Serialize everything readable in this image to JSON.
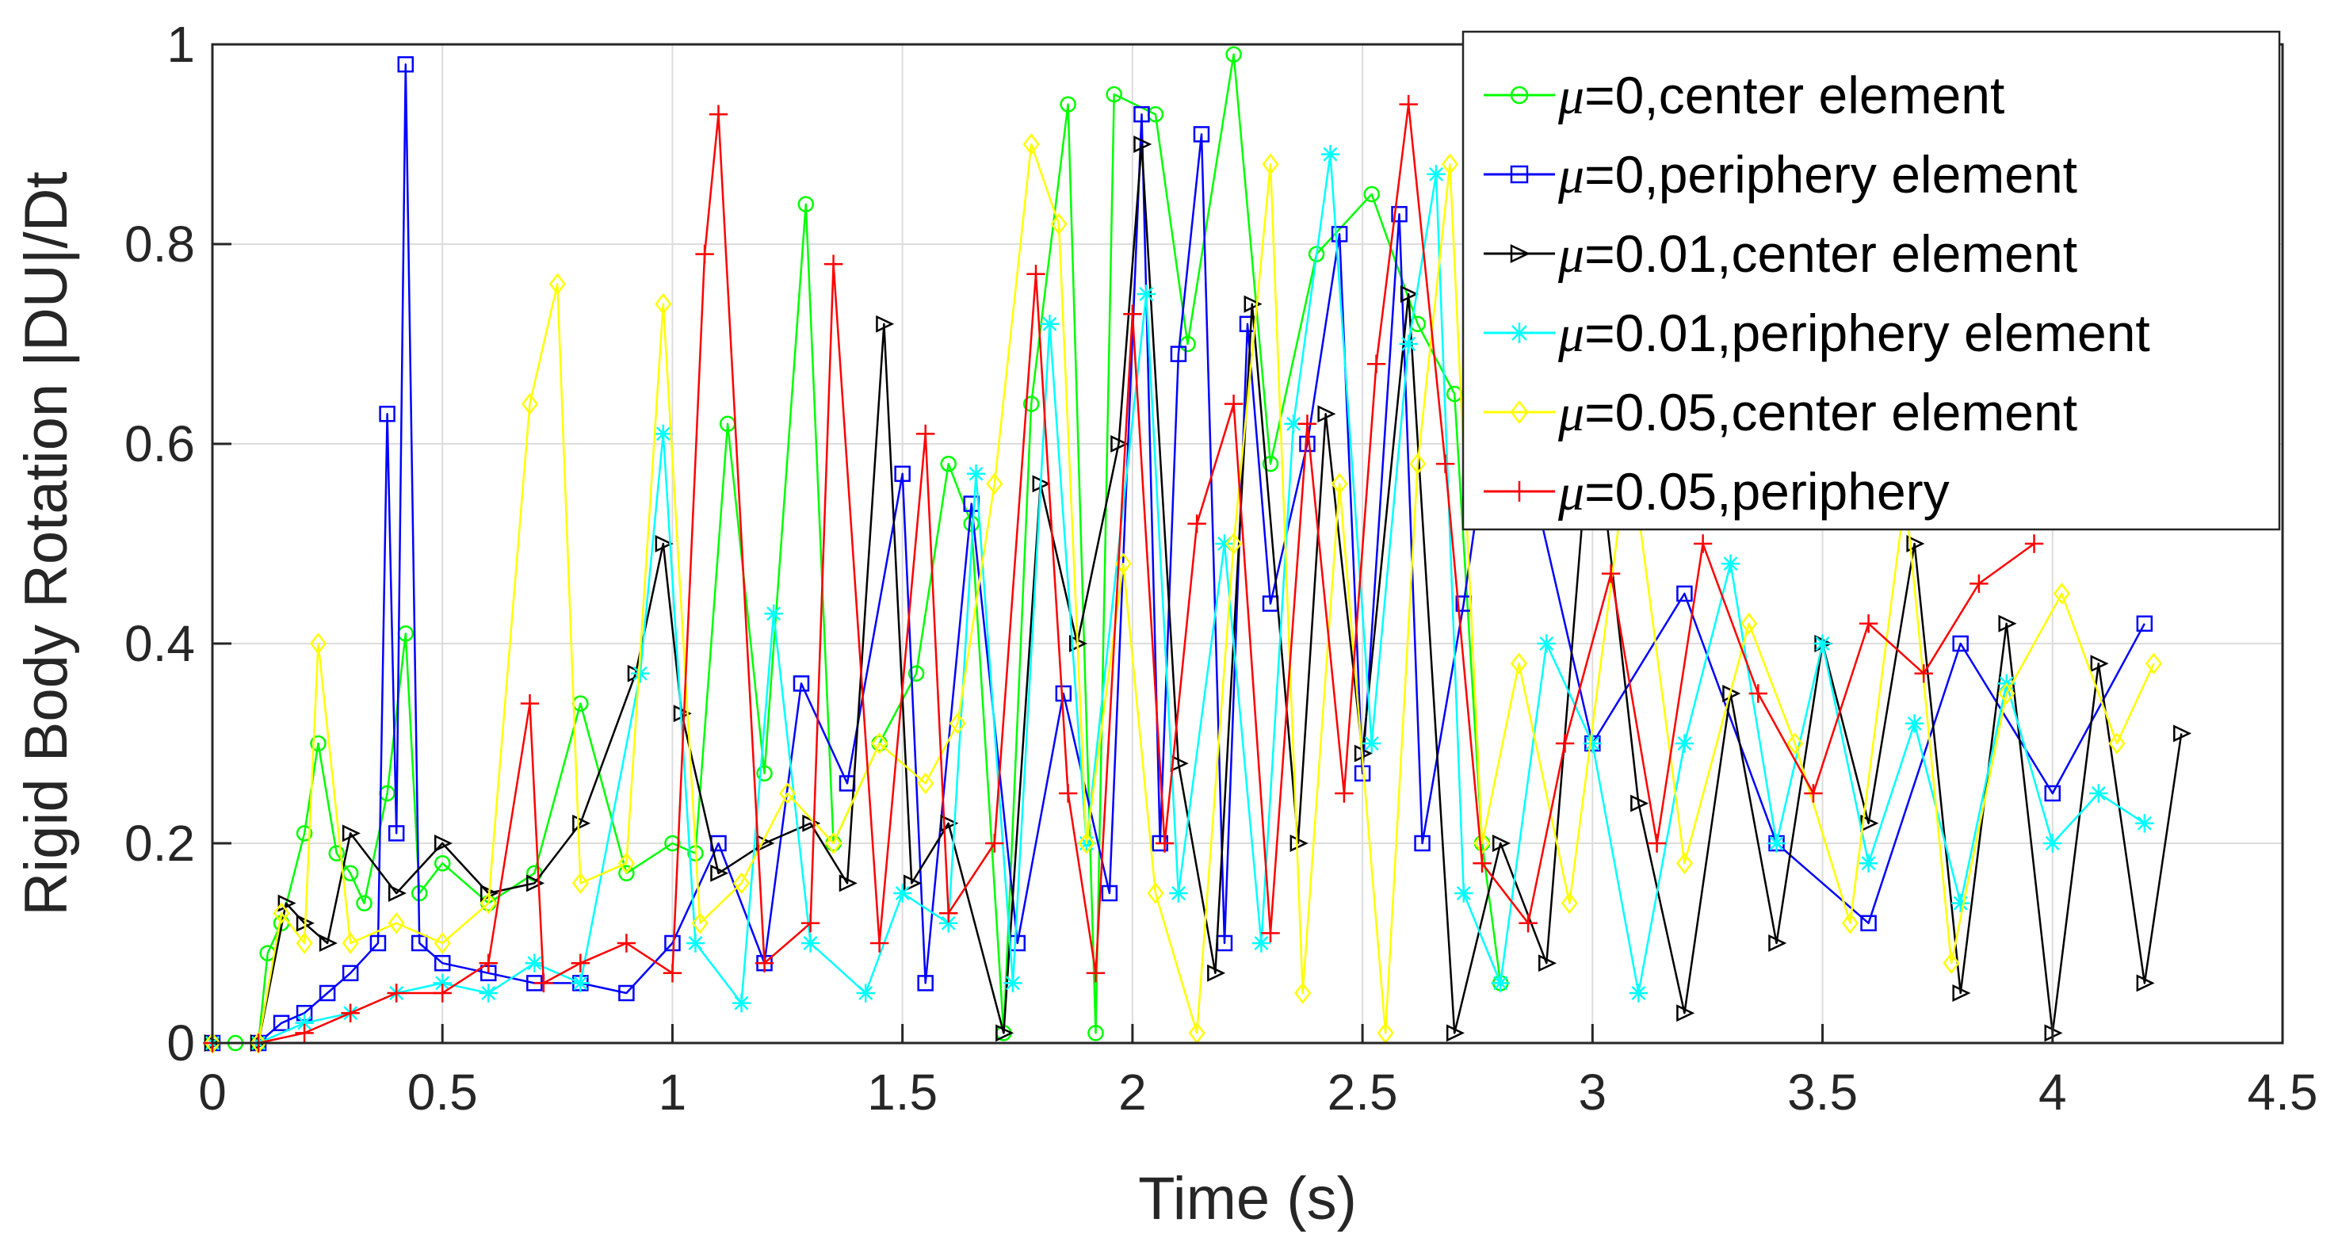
{
  "chart_data": {
    "type": "line",
    "title": "",
    "xlabel": "Time (s)",
    "ylabel": "Rigid Body Rotation |DU|/Dt",
    "xlim": [
      0,
      4.5
    ],
    "ylim": [
      0,
      1
    ],
    "grid": true,
    "legend_position": "top-right",
    "x_ticks": [
      0,
      0.5,
      1,
      1.5,
      2,
      2.5,
      3,
      3.5,
      4,
      4.5
    ],
    "x_tick_labels": [
      "0",
      "0.5",
      "1",
      "1.5",
      "2",
      "2.5",
      "3",
      "3.5",
      "4",
      "4.5"
    ],
    "y_ticks": [
      0,
      0.2,
      0.4,
      0.6,
      0.8,
      1
    ],
    "y_tick_labels": [
      "0",
      "0.2",
      "0.4",
      "0.6",
      "0.8",
      "1"
    ],
    "series": [
      {
        "name": "μ=0,center element",
        "mu_symbol": "μ",
        "label_rest": "=0,center element",
        "color": "#00ff00",
        "marker": "circle",
        "x": [
          0.0,
          0.05,
          0.1,
          0.12,
          0.15,
          0.2,
          0.23,
          0.27,
          0.3,
          0.33,
          0.38,
          0.42,
          0.45,
          0.5,
          0.6,
          0.7,
          0.8,
          0.9,
          1.0,
          1.05,
          1.12,
          1.2,
          1.29,
          1.35,
          1.45,
          1.53,
          1.6,
          1.65,
          1.72,
          1.78,
          1.86,
          1.92,
          1.96,
          2.05,
          2.12,
          2.22,
          2.3,
          2.4,
          2.52,
          2.62,
          2.7,
          2.76,
          2.8
        ],
        "values": [
          0.0,
          0.0,
          0.0,
          0.09,
          0.12,
          0.21,
          0.3,
          0.19,
          0.17,
          0.14,
          0.25,
          0.41,
          0.15,
          0.18,
          0.14,
          0.17,
          0.34,
          0.17,
          0.2,
          0.19,
          0.62,
          0.27,
          0.84,
          0.2,
          0.3,
          0.37,
          0.58,
          0.52,
          0.01,
          0.64,
          0.94,
          0.01,
          0.95,
          0.93,
          0.7,
          0.99,
          0.58,
          0.79,
          0.85,
          0.72,
          0.65,
          0.2,
          0.06
        ]
      },
      {
        "name": "μ=0,periphery element",
        "mu_symbol": "μ",
        "label_rest": "=0,periphery element",
        "color": "#0000ff",
        "marker": "square",
        "x": [
          0.0,
          0.1,
          0.15,
          0.2,
          0.25,
          0.3,
          0.36,
          0.38,
          0.4,
          0.42,
          0.45,
          0.5,
          0.6,
          0.7,
          0.8,
          0.9,
          1.0,
          1.1,
          1.2,
          1.28,
          1.38,
          1.5,
          1.55,
          1.65,
          1.75,
          1.85,
          1.95,
          2.02,
          2.06,
          2.1,
          2.15,
          2.2,
          2.25,
          2.3,
          2.38,
          2.45,
          2.5,
          2.58,
          2.63,
          2.72,
          2.8,
          3.0,
          3.2,
          3.4,
          3.6,
          3.8,
          4.0,
          4.2
        ],
        "values": [
          0.0,
          0.0,
          0.02,
          0.03,
          0.05,
          0.07,
          0.1,
          0.63,
          0.21,
          0.98,
          0.1,
          0.08,
          0.07,
          0.06,
          0.06,
          0.05,
          0.1,
          0.2,
          0.08,
          0.36,
          0.26,
          0.57,
          0.06,
          0.54,
          0.1,
          0.35,
          0.15,
          0.93,
          0.2,
          0.69,
          0.91,
          0.1,
          0.72,
          0.44,
          0.6,
          0.81,
          0.27,
          0.83,
          0.2,
          0.44,
          0.7,
          0.3,
          0.45,
          0.2,
          0.12,
          0.4,
          0.25,
          0.42
        ]
      },
      {
        "name": "μ=0.01,center element",
        "mu_symbol": "μ",
        "label_rest": "=0.01,center element",
        "color": "#000000",
        "marker": "triangle-right",
        "x": [
          0.0,
          0.1,
          0.16,
          0.2,
          0.25,
          0.3,
          0.4,
          0.5,
          0.6,
          0.7,
          0.8,
          0.92,
          0.98,
          1.02,
          1.1,
          1.2,
          1.3,
          1.38,
          1.46,
          1.52,
          1.6,
          1.72,
          1.8,
          1.88,
          1.97,
          2.02,
          2.1,
          2.18,
          2.26,
          2.36,
          2.42,
          2.5,
          2.6,
          2.7,
          2.8,
          2.9,
          3.0,
          3.1,
          3.2,
          3.3,
          3.4,
          3.5,
          3.6,
          3.7,
          3.8,
          3.9,
          4.0,
          4.1,
          4.2,
          4.28
        ],
        "values": [
          0.0,
          0.0,
          0.14,
          0.12,
          0.1,
          0.21,
          0.15,
          0.2,
          0.15,
          0.16,
          0.22,
          0.37,
          0.5,
          0.33,
          0.17,
          0.2,
          0.22,
          0.16,
          0.72,
          0.16,
          0.22,
          0.01,
          0.56,
          0.4,
          0.6,
          0.9,
          0.28,
          0.07,
          0.74,
          0.2,
          0.63,
          0.29,
          0.75,
          0.01,
          0.2,
          0.08,
          0.65,
          0.24,
          0.03,
          0.35,
          0.1,
          0.4,
          0.22,
          0.5,
          0.05,
          0.42,
          0.01,
          0.38,
          0.06,
          0.31
        ]
      },
      {
        "name": "μ=0.01,periphery element",
        "mu_symbol": "μ",
        "label_rest": "=0.01,periphery element",
        "color": "#00ffff",
        "marker": "asterisk",
        "x": [
          0.0,
          0.1,
          0.2,
          0.3,
          0.4,
          0.5,
          0.6,
          0.7,
          0.8,
          0.93,
          0.98,
          1.05,
          1.15,
          1.22,
          1.3,
          1.42,
          1.5,
          1.6,
          1.66,
          1.74,
          1.82,
          1.9,
          2.03,
          2.1,
          2.2,
          2.28,
          2.35,
          2.43,
          2.52,
          2.6,
          2.66,
          2.72,
          2.8,
          2.9,
          3.0,
          3.1,
          3.2,
          3.3,
          3.4,
          3.5,
          3.6,
          3.7,
          3.8,
          3.9,
          4.0,
          4.1,
          4.2
        ],
        "values": [
          0.0,
          0.0,
          0.02,
          0.03,
          0.05,
          0.06,
          0.05,
          0.08,
          0.06,
          0.37,
          0.61,
          0.1,
          0.04,
          0.43,
          0.1,
          0.05,
          0.15,
          0.12,
          0.57,
          0.06,
          0.72,
          0.2,
          0.75,
          0.15,
          0.5,
          0.1,
          0.62,
          0.89,
          0.3,
          0.7,
          0.87,
          0.15,
          0.06,
          0.4,
          0.3,
          0.05,
          0.3,
          0.48,
          0.2,
          0.4,
          0.18,
          0.32,
          0.14,
          0.36,
          0.2,
          0.25,
          0.22
        ]
      },
      {
        "name": "μ=0.05,center element",
        "mu_symbol": "μ",
        "label_rest": "=0.05,center element",
        "color": "#ffff00",
        "marker": "diamond",
        "x": [
          0.0,
          0.1,
          0.15,
          0.2,
          0.23,
          0.3,
          0.4,
          0.5,
          0.6,
          0.69,
          0.75,
          0.8,
          0.9,
          0.98,
          1.06,
          1.15,
          1.25,
          1.35,
          1.45,
          1.55,
          1.62,
          1.7,
          1.78,
          1.84,
          1.9,
          1.98,
          2.05,
          2.14,
          2.22,
          2.3,
          2.37,
          2.45,
          2.55,
          2.62,
          2.69,
          2.76,
          2.84,
          2.95,
          3.08,
          3.2,
          3.34,
          3.44,
          3.56,
          3.68,
          3.78,
          3.9,
          4.02,
          4.14,
          4.22
        ],
        "values": [
          0.0,
          0.0,
          0.13,
          0.1,
          0.4,
          0.1,
          0.12,
          0.1,
          0.14,
          0.64,
          0.76,
          0.16,
          0.18,
          0.74,
          0.12,
          0.16,
          0.25,
          0.2,
          0.3,
          0.26,
          0.32,
          0.56,
          0.9,
          0.82,
          0.2,
          0.48,
          0.15,
          0.01,
          0.5,
          0.88,
          0.05,
          0.56,
          0.01,
          0.58,
          0.88,
          0.2,
          0.38,
          0.14,
          0.6,
          0.18,
          0.42,
          0.3,
          0.12,
          0.55,
          0.08,
          0.35,
          0.45,
          0.3,
          0.38
        ]
      },
      {
        "name": "μ=0.05,periphery",
        "mu_symbol": "μ",
        "label_rest": "=0.05,periphery",
        "color": "#ff0000",
        "marker": "plus",
        "x": [
          0.0,
          0.1,
          0.2,
          0.3,
          0.4,
          0.5,
          0.6,
          0.69,
          0.72,
          0.8,
          0.9,
          1.0,
          1.07,
          1.1,
          1.2,
          1.3,
          1.35,
          1.45,
          1.55,
          1.6,
          1.7,
          1.79,
          1.86,
          1.92,
          2.0,
          2.07,
          2.14,
          2.22,
          2.3,
          2.38,
          2.46,
          2.53,
          2.6,
          2.68,
          2.76,
          2.86,
          2.94,
          3.04,
          3.14,
          3.24,
          3.36,
          3.48,
          3.6,
          3.72,
          3.84,
          3.96
        ],
        "values": [
          0.0,
          0.0,
          0.01,
          0.03,
          0.05,
          0.05,
          0.08,
          0.34,
          0.06,
          0.08,
          0.1,
          0.07,
          0.79,
          0.93,
          0.08,
          0.12,
          0.78,
          0.1,
          0.61,
          0.13,
          0.2,
          0.77,
          0.25,
          0.07,
          0.73,
          0.2,
          0.52,
          0.64,
          0.11,
          0.62,
          0.25,
          0.68,
          0.94,
          0.58,
          0.18,
          0.12,
          0.3,
          0.47,
          0.2,
          0.5,
          0.35,
          0.25,
          0.42,
          0.37,
          0.46,
          0.5
        ]
      }
    ]
  }
}
